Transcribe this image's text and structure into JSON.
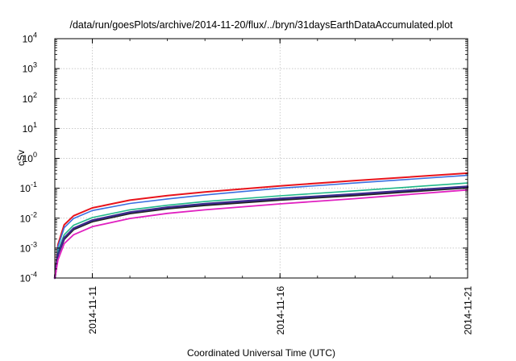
{
  "chart_data": {
    "type": "line",
    "title": "/data/run/goesPlots/archive/2014-11-20/flux/../bryn/31daysEarthDataAccumulated.plot",
    "xlabel": "Coordinated Universal Time (UTC)",
    "ylabel": "cSv",
    "x_axis_kind": "date",
    "xlim": [
      "2014-11-10",
      "2014-11-21"
    ],
    "x_ticks": [
      "2014-11-11",
      "2014-11-16",
      "2014-11-21"
    ],
    "x_minor_step_days": 1,
    "ylim": [
      0.0001,
      10000
    ],
    "y_scale": "log",
    "y_ticks": [
      {
        "base": "10",
        "exp": "4",
        "value": 10000
      },
      {
        "base": "10",
        "exp": "3",
        "value": 1000
      },
      {
        "base": "10",
        "exp": "2",
        "value": 100
      },
      {
        "base": "10",
        "exp": "1",
        "value": 10
      },
      {
        "base": "10",
        "exp": "0",
        "value": 1
      },
      {
        "base": "10",
        "exp": "-1",
        "value": 0.1
      },
      {
        "base": "10",
        "exp": "-2",
        "value": 0.01
      },
      {
        "base": "10",
        "exp": "-3",
        "value": 0.001
      },
      {
        "base": "10",
        "exp": "-4",
        "value": 0.0001
      }
    ],
    "grid": true,
    "legend": "none",
    "x": [
      "2014-11-10 00:00",
      "2014-11-10 02:00",
      "2014-11-10 06:00",
      "2014-11-10 12:00",
      "2014-11-11 00:00",
      "2014-11-12 00:00",
      "2014-11-13 00:00",
      "2014-11-14 00:00",
      "2014-11-16 00:00",
      "2014-11-18 00:00",
      "2014-11-21 00:00"
    ],
    "series": [
      {
        "color": "#e8141c",
        "width": 2.0,
        "values": [
          0.0001,
          0.0013,
          0.006,
          0.012,
          0.022,
          0.04,
          0.057,
          0.075,
          0.12,
          0.18,
          0.32
        ]
      },
      {
        "color": "#3a6fe0",
        "width": 1.6,
        "values": [
          0.0001,
          0.0011,
          0.0048,
          0.0098,
          0.018,
          0.031,
          0.044,
          0.06,
          0.1,
          0.15,
          0.27
        ]
      },
      {
        "color": "#20b88a",
        "width": 1.6,
        "values": [
          0.0001,
          0.0008,
          0.0028,
          0.0058,
          0.0105,
          0.019,
          0.027,
          0.036,
          0.056,
          0.082,
          0.15
        ]
      },
      {
        "color": "#222222",
        "width": 2.4,
        "values": [
          0.0001,
          0.0006,
          0.002,
          0.0042,
          0.0078,
          0.0145,
          0.021,
          0.027,
          0.041,
          0.058,
          0.105
        ]
      },
      {
        "color": "#3b2a8c",
        "width": 2.4,
        "values": [
          0.0001,
          0.0006,
          0.0022,
          0.0046,
          0.0085,
          0.0158,
          0.023,
          0.03,
          0.045,
          0.064,
          0.115
        ]
      },
      {
        "color": "#e020c0",
        "width": 1.8,
        "values": [
          0.0001,
          0.0004,
          0.0014,
          0.0028,
          0.0052,
          0.0098,
          0.0145,
          0.019,
          0.03,
          0.045,
          0.088
        ]
      }
    ]
  }
}
